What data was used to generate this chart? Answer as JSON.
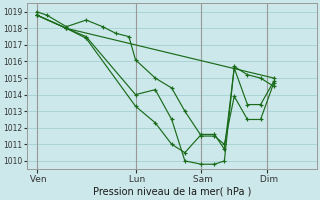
{
  "background_color": "#cce8ea",
  "grid_color": "#aad4d6",
  "line_color": "#1a6b1a",
  "marker_color": "#1a6b1a",
  "xlabel": "Pression niveau de la mer( hPa )",
  "ylim": [
    1009.5,
    1019.5
  ],
  "yticks": [
    1010,
    1011,
    1012,
    1013,
    1014,
    1015,
    1016,
    1017,
    1018,
    1019
  ],
  "xtick_labels": [
    " Ven",
    " Lun",
    " Sam",
    " Dim"
  ],
  "xtick_positions": [
    0,
    3,
    5,
    7
  ],
  "xlim": [
    -0.3,
    8.5
  ],
  "series": [
    [
      [
        0.0,
        1019.0
      ],
      [
        0.3,
        1018.8
      ],
      [
        0.9,
        1018.1
      ],
      [
        1.5,
        1018.5
      ],
      [
        2.0,
        1018.1
      ],
      [
        2.4,
        1017.7
      ],
      [
        2.8,
        1017.5
      ],
      [
        3.0,
        1016.1
      ],
      [
        3.6,
        1015.0
      ],
      [
        4.1,
        1014.4
      ],
      [
        4.5,
        1013.0
      ],
      [
        5.0,
        1011.5
      ],
      [
        5.4,
        1011.5
      ],
      [
        5.7,
        1011.0
      ],
      [
        6.0,
        1013.9
      ],
      [
        6.4,
        1012.5
      ],
      [
        6.8,
        1012.5
      ],
      [
        7.2,
        1014.7
      ]
    ],
    [
      [
        0.0,
        1018.8
      ],
      [
        0.9,
        1018.0
      ],
      [
        1.5,
        1017.5
      ],
      [
        3.0,
        1014.0
      ],
      [
        3.6,
        1014.3
      ],
      [
        4.1,
        1012.5
      ],
      [
        4.5,
        1010.0
      ],
      [
        5.0,
        1009.8
      ],
      [
        5.4,
        1009.8
      ],
      [
        5.7,
        1010.0
      ],
      [
        6.0,
        1015.7
      ],
      [
        6.4,
        1015.2
      ],
      [
        6.8,
        1015.0
      ],
      [
        7.2,
        1014.5
      ]
    ],
    [
      [
        0.0,
        1018.8
      ],
      [
        0.9,
        1018.0
      ],
      [
        1.5,
        1017.4
      ],
      [
        3.0,
        1013.3
      ],
      [
        3.6,
        1012.3
      ],
      [
        4.1,
        1011.0
      ],
      [
        4.5,
        1010.5
      ],
      [
        5.0,
        1011.6
      ],
      [
        5.4,
        1011.6
      ],
      [
        5.7,
        1010.7
      ],
      [
        6.0,
        1015.6
      ],
      [
        6.4,
        1013.4
      ],
      [
        6.8,
        1013.4
      ],
      [
        7.2,
        1014.8
      ]
    ],
    [
      [
        0.0,
        1018.8
      ],
      [
        0.9,
        1018.0
      ],
      [
        7.2,
        1015.0
      ]
    ]
  ]
}
